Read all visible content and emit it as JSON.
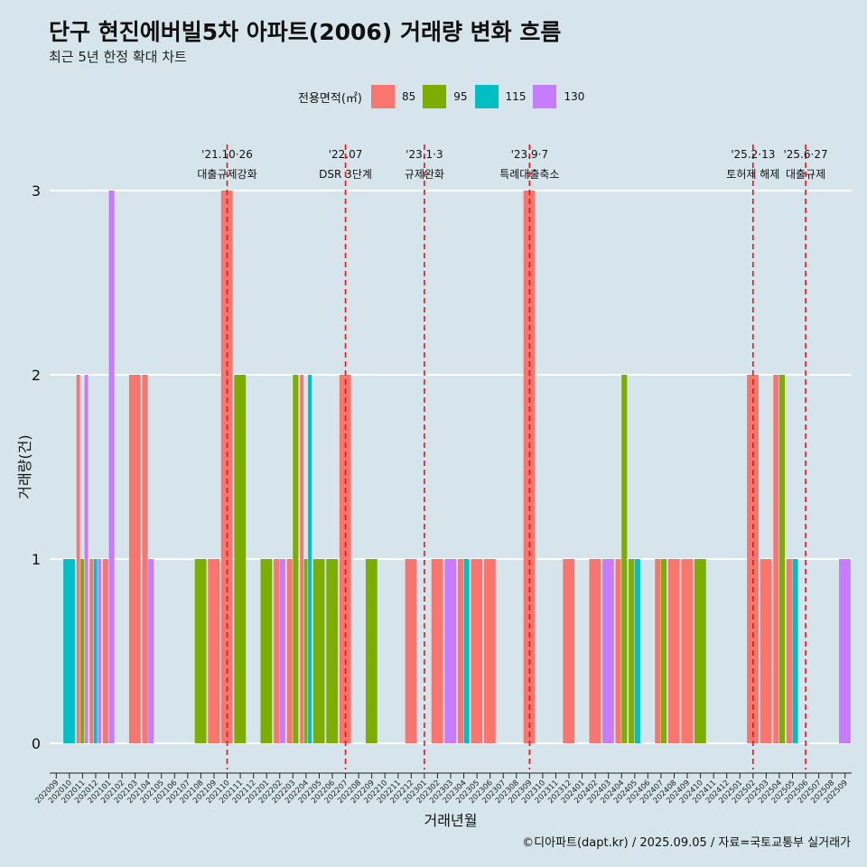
{
  "chart_data": {
    "type": "bar",
    "title": "단구 현진에버빌5차 아파트(2006) 거래량 변화 흐름",
    "subtitle": "최근 5년 한정 확대 차트",
    "xlabel": "거래년월",
    "ylabel": "거래량(건)",
    "ylim": [
      0,
      3
    ],
    "yticks": [
      0,
      1,
      2,
      3
    ],
    "caption": "©디아파트(dapt.kr) / 2025.09.05 / 자료=국토교통부 실거래가",
    "legend": {
      "title": "전용면적(㎡)",
      "entries": [
        {
          "name": "85",
          "color": "#f8766d"
        },
        {
          "name": "95",
          "color": "#7cae00"
        },
        {
          "name": "115",
          "color": "#00bfc4"
        },
        {
          "name": "130",
          "color": "#c77cff"
        }
      ]
    },
    "categories": [
      "202009",
      "202010",
      "202011",
      "202012",
      "202101",
      "202102",
      "202103",
      "202104",
      "202105",
      "202106",
      "202107",
      "202108",
      "202109",
      "202110",
      "202111",
      "202112",
      "202201",
      "202202",
      "202203",
      "202204",
      "202205",
      "202206",
      "202207",
      "202208",
      "202209",
      "202210",
      "202211",
      "202212",
      "202301",
      "202302",
      "202303",
      "202304",
      "202305",
      "202306",
      "202307",
      "202308",
      "202309",
      "202310",
      "202311",
      "202312",
      "202401",
      "202402",
      "202403",
      "202404",
      "202405",
      "202406",
      "202407",
      "202408",
      "202409",
      "202410",
      "202411",
      "202412",
      "202501",
      "202502",
      "202503",
      "202504",
      "202505",
      "202506",
      "202507",
      "202508",
      "202509"
    ],
    "bars": [
      {
        "month": "202010",
        "series": "115",
        "value": 1
      },
      {
        "month": "202011",
        "series": "85",
        "value": 2
      },
      {
        "month": "202011",
        "series": "95",
        "value": 1
      },
      {
        "month": "202011",
        "series": "130",
        "value": 2
      },
      {
        "month": "202012",
        "series": "85",
        "value": 1
      },
      {
        "month": "202012",
        "series": "115",
        "value": 1
      },
      {
        "month": "202012",
        "series": "130",
        "value": 1
      },
      {
        "month": "202101",
        "series": "85",
        "value": 1
      },
      {
        "month": "202101",
        "series": "130",
        "value": 3
      },
      {
        "month": "202103",
        "series": "85",
        "value": 2
      },
      {
        "month": "202104",
        "series": "85",
        "value": 2
      },
      {
        "month": "202104",
        "series": "130",
        "value": 1
      },
      {
        "month": "202108",
        "series": "95",
        "value": 1
      },
      {
        "month": "202109",
        "series": "85",
        "value": 1
      },
      {
        "month": "202110",
        "series": "85",
        "value": 3
      },
      {
        "month": "202111",
        "series": "95",
        "value": 2
      },
      {
        "month": "202201",
        "series": "95",
        "value": 1
      },
      {
        "month": "202202",
        "series": "85",
        "value": 1
      },
      {
        "month": "202202",
        "series": "130",
        "value": 1
      },
      {
        "month": "202203",
        "series": "85",
        "value": 1
      },
      {
        "month": "202203",
        "series": "95",
        "value": 2
      },
      {
        "month": "202204",
        "series": "85",
        "value": 2
      },
      {
        "month": "202204",
        "series": "95",
        "value": 1
      },
      {
        "month": "202204",
        "series": "115",
        "value": 2
      },
      {
        "month": "202205",
        "series": "95",
        "value": 1
      },
      {
        "month": "202206",
        "series": "95",
        "value": 1
      },
      {
        "month": "202207",
        "series": "85",
        "value": 2
      },
      {
        "month": "202209",
        "series": "95",
        "value": 1
      },
      {
        "month": "202212",
        "series": "85",
        "value": 1
      },
      {
        "month": "202302",
        "series": "85",
        "value": 1
      },
      {
        "month": "202303",
        "series": "130",
        "value": 1
      },
      {
        "month": "202304",
        "series": "85",
        "value": 1
      },
      {
        "month": "202304",
        "series": "115",
        "value": 1
      },
      {
        "month": "202305",
        "series": "85",
        "value": 1
      },
      {
        "month": "202306",
        "series": "85",
        "value": 1
      },
      {
        "month": "202309",
        "series": "85",
        "value": 3
      },
      {
        "month": "202312",
        "series": "85",
        "value": 1
      },
      {
        "month": "202402",
        "series": "85",
        "value": 1
      },
      {
        "month": "202403",
        "series": "130",
        "value": 1
      },
      {
        "month": "202404",
        "series": "85",
        "value": 1
      },
      {
        "month": "202404",
        "series": "95",
        "value": 2
      },
      {
        "month": "202405",
        "series": "95",
        "value": 1
      },
      {
        "month": "202405",
        "series": "115",
        "value": 1
      },
      {
        "month": "202407",
        "series": "85",
        "value": 1
      },
      {
        "month": "202407",
        "series": "95",
        "value": 1
      },
      {
        "month": "202408",
        "series": "85",
        "value": 1
      },
      {
        "month": "202409",
        "series": "85",
        "value": 1
      },
      {
        "month": "202410",
        "series": "95",
        "value": 1
      },
      {
        "month": "202502",
        "series": "85",
        "value": 2
      },
      {
        "month": "202503",
        "series": "85",
        "value": 1
      },
      {
        "month": "202504",
        "series": "85",
        "value": 2
      },
      {
        "month": "202504",
        "series": "95",
        "value": 2
      },
      {
        "month": "202505",
        "series": "85",
        "value": 1
      },
      {
        "month": "202505",
        "series": "115",
        "value": 1
      },
      {
        "month": "202509",
        "series": "130",
        "value": 1
      }
    ],
    "annotations": [
      {
        "month": "202110",
        "date": "'21.10·26",
        "label": "대출규제강화"
      },
      {
        "month": "202207",
        "date": "'22.07",
        "label": "DSR 3단계"
      },
      {
        "month": "202301",
        "date": "'23.1·3",
        "label": "규제완화"
      },
      {
        "month": "202309",
        "date": "'23.9·7",
        "label": "특례대출축소"
      },
      {
        "month": "202502",
        "date": "'25.2·13",
        "label": "토허제 해제"
      },
      {
        "month": "202506",
        "date": "'25.6·27",
        "label": "대출규제"
      }
    ]
  }
}
